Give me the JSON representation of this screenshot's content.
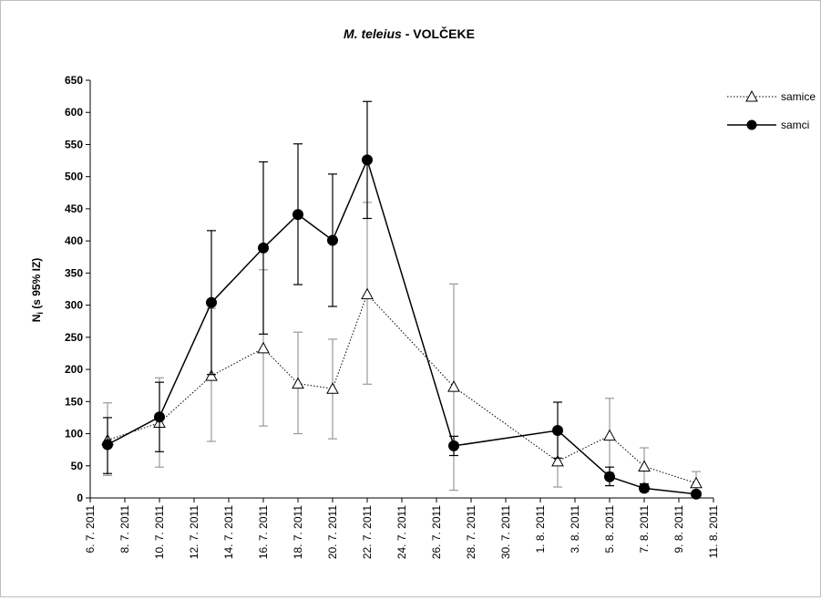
{
  "chart_data": {
    "type": "line",
    "title": {
      "italic": "M. teleius",
      "rest": " - VOLČEKE"
    },
    "ylabel": {
      "main": "N",
      "sub": "i",
      "rest": " (s 95% IZ)"
    },
    "xlabel": "",
    "ylim": [
      0,
      650
    ],
    "yticks": [
      0,
      50,
      100,
      150,
      200,
      250,
      300,
      350,
      400,
      450,
      500,
      550,
      600,
      650
    ],
    "xlim": [
      "2011-07-06",
      "2011-08-11"
    ],
    "xtick_labels": [
      "6. 7. 2011",
      "8. 7. 2011",
      "10. 7. 2011",
      "12. 7. 2011",
      "14. 7. 2011",
      "16. 7. 2011",
      "18. 7. 2011",
      "20. 7. 2011",
      "22. 7. 2011",
      "24. 7. 2011",
      "26. 7. 2011",
      "28. 7. 2011",
      "30. 7. 2011",
      "1. 8. 2011",
      "3. 8. 2011",
      "5. 8. 2011",
      "7. 8. 2011",
      "9. 8. 2011",
      "11. 8. 2011"
    ],
    "grid": false,
    "legend_position": "top-right",
    "series": [
      {
        "name": "samice",
        "marker": "open-triangle",
        "line": "dotted",
        "color": "#000000",
        "errcolor": "#999999",
        "points": [
          {
            "x": "2011-07-07",
            "y": 90,
            "lo": 35,
            "hi": 148
          },
          {
            "x": "2011-07-10",
            "y": 117,
            "lo": 48,
            "hi": 187
          },
          {
            "x": "2011-07-13",
            "y": 190,
            "lo": 88,
            "hi": 295
          },
          {
            "x": "2011-07-16",
            "y": 233,
            "lo": 112,
            "hi": 355
          },
          {
            "x": "2011-07-18",
            "y": 178,
            "lo": 100,
            "hi": 258
          },
          {
            "x": "2011-07-20",
            "y": 170,
            "lo": 92,
            "hi": 247
          },
          {
            "x": "2011-07-22",
            "y": 317,
            "lo": 177,
            "hi": 460
          },
          {
            "x": "2011-07-27",
            "y": 173,
            "lo": 12,
            "hi": 333
          },
          {
            "x": "2011-08-02",
            "y": 57,
            "lo": 17,
            "hi": 105
          },
          {
            "x": "2011-08-05",
            "y": 97,
            "lo": 40,
            "hi": 155
          },
          {
            "x": "2011-08-07",
            "y": 49,
            "lo": 20,
            "hi": 78
          },
          {
            "x": "2011-08-10",
            "y": 23,
            "lo": 8,
            "hi": 41
          }
        ]
      },
      {
        "name": "samci",
        "marker": "filled-circle",
        "line": "solid",
        "color": "#000000",
        "errcolor": "#000000",
        "points": [
          {
            "x": "2011-07-07",
            "y": 83,
            "lo": 38,
            "hi": 125
          },
          {
            "x": "2011-07-10",
            "y": 126,
            "lo": 72,
            "hi": 180
          },
          {
            "x": "2011-07-13",
            "y": 304,
            "lo": 192,
            "hi": 416
          },
          {
            "x": "2011-07-16",
            "y": 389,
            "lo": 255,
            "hi": 523
          },
          {
            "x": "2011-07-18",
            "y": 441,
            "lo": 332,
            "hi": 551
          },
          {
            "x": "2011-07-20",
            "y": 401,
            "lo": 298,
            "hi": 504
          },
          {
            "x": "2011-07-22",
            "y": 526,
            "lo": 435,
            "hi": 617
          },
          {
            "x": "2011-07-27",
            "y": 81,
            "lo": 66,
            "hi": 96
          },
          {
            "x": "2011-08-02",
            "y": 105,
            "lo": 62,
            "hi": 149
          },
          {
            "x": "2011-08-05",
            "y": 33,
            "lo": 19,
            "hi": 48
          },
          {
            "x": "2011-08-07",
            "y": 15,
            "lo": 10,
            "hi": 22
          },
          {
            "x": "2011-08-10",
            "y": 6,
            "lo": 3,
            "hi": 9
          }
        ]
      }
    ]
  }
}
